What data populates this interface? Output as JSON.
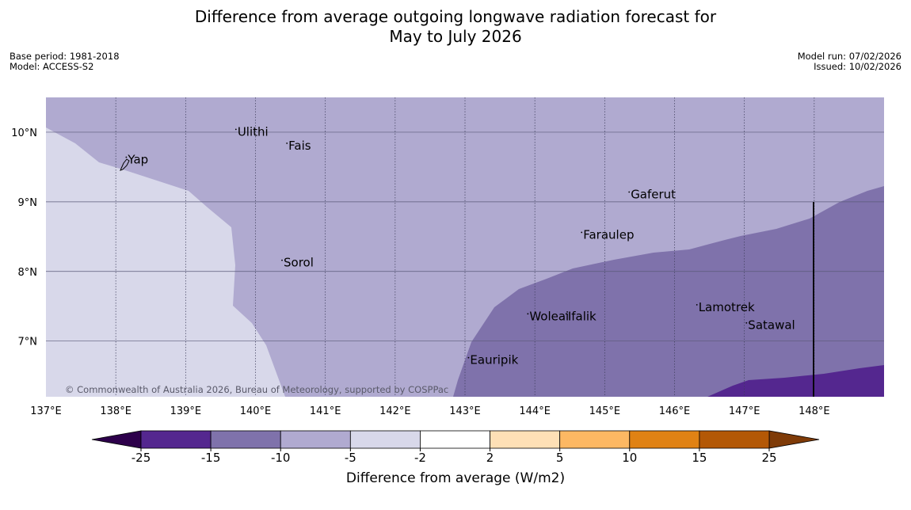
{
  "title": {
    "line1": "Difference from average outgoing longwave radiation forecast for",
    "line2": "May to July 2026"
  },
  "meta_left": {
    "base_period": "Base period: 1981-2018",
    "model": "Model: ACCESS-S2"
  },
  "meta_right": {
    "model_run": "Model run: 07/02/2026",
    "issued": "Issued: 10/02/2026"
  },
  "copyright": "© Commonwealth of Australia 2026, Bureau of Meteorology, supported by COSPPac",
  "map": {
    "lon_range": [
      137,
      149
    ],
    "lat_range": [
      6.2,
      10.5
    ],
    "lon_ticks": [
      {
        "value": 137,
        "label": "137°E"
      },
      {
        "value": 138,
        "label": "138°E"
      },
      {
        "value": 139,
        "label": "139°E"
      },
      {
        "value": 140,
        "label": "140°E"
      },
      {
        "value": 141,
        "label": "141°E"
      },
      {
        "value": 142,
        "label": "142°E"
      },
      {
        "value": 143,
        "label": "143°E"
      },
      {
        "value": 144,
        "label": "144°E"
      },
      {
        "value": 145,
        "label": "145°E"
      },
      {
        "value": 146,
        "label": "146°E"
      },
      {
        "value": 147,
        "label": "147°E"
      },
      {
        "value": 148,
        "label": "148°E"
      }
    ],
    "lat_ticks": [
      {
        "value": 10,
        "label": "10°N"
      },
      {
        "value": 9,
        "label": "9°N"
      },
      {
        "value": 8,
        "label": "8°N"
      },
      {
        "value": 7,
        "label": "7°N"
      }
    ],
    "places": [
      {
        "name": "Yap",
        "lon": 138.15,
        "lat": 9.55
      },
      {
        "name": "Ulithi",
        "lon": 139.72,
        "lat": 9.95
      },
      {
        "name": "Fais",
        "lon": 140.45,
        "lat": 9.75
      },
      {
        "name": "Gaferut",
        "lon": 145.35,
        "lat": 9.05
      },
      {
        "name": "Faraulep",
        "lon": 144.67,
        "lat": 8.47
      },
      {
        "name": "Sorol",
        "lon": 140.38,
        "lat": 8.07
      },
      {
        "name": "Woleai",
        "lon": 143.9,
        "lat": 7.3
      },
      {
        "name": "Ifalik",
        "lon": 144.45,
        "lat": 7.3
      },
      {
        "name": "Lamotrek",
        "lon": 146.32,
        "lat": 7.43
      },
      {
        "name": "Satawal",
        "lon": 147.03,
        "lat": 7.17
      },
      {
        "name": "Eauripik",
        "lon": 143.05,
        "lat": 6.67
      }
    ],
    "regions": [
      {
        "range": "-10 to -5",
        "color": "#b0aad0"
      },
      {
        "range": "-5 to -2",
        "color": "#d8d8ea"
      },
      {
        "range": "-15 to -10",
        "color": "#7f72ab"
      },
      {
        "range": "-25 to -15",
        "color": "#54278f"
      }
    ]
  },
  "colorbar": {
    "ticks": [
      "-25",
      "-15",
      "-10",
      "-5",
      "-2",
      "2",
      "5",
      "10",
      "15",
      "25"
    ],
    "colors": [
      "#54278f",
      "#7f72ab",
      "#b0aad0",
      "#d8d8ea",
      "#ffffff",
      "#fee0b6",
      "#fdb863",
      "#e08214",
      "#b35806"
    ],
    "under_color": "#2d004b",
    "over_color": "#7f3b08",
    "label": "Difference from average (W/m2)"
  }
}
